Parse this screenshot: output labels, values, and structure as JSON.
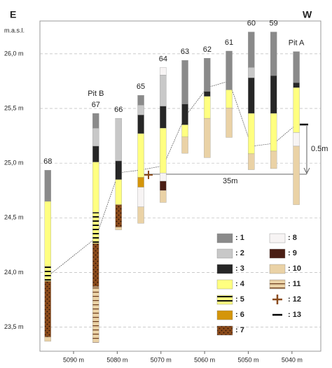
{
  "header": {
    "left": "E",
    "right": "W",
    "unit": "m.a.s.l."
  },
  "y_axis": {
    "lim": [
      23.28,
      26.3
    ],
    "ticks": [
      {
        "value": 26.0,
        "label": "26,0 m"
      },
      {
        "value": 25.5,
        "label": "25,5 m"
      },
      {
        "value": 25.0,
        "label": "25,0 m"
      },
      {
        "value": 24.5,
        "label": "24,5 m"
      },
      {
        "value": 24.0,
        "label": "24,0 m"
      },
      {
        "value": 23.5,
        "label": "23,5 m"
      }
    ]
  },
  "x_axis": {
    "lim": [
      5097.7,
      5033.4
    ],
    "ticks": [
      {
        "value": 5090,
        "label": "5090 m"
      },
      {
        "value": 5080,
        "label": "5080 m"
      },
      {
        "value": 5070,
        "label": "5070 m"
      },
      {
        "value": 5060,
        "label": "5060 m"
      },
      {
        "value": 5050,
        "label": "5050 m"
      },
      {
        "value": 5040,
        "label": "5040 m"
      }
    ]
  },
  "columns": [
    {
      "labels": [
        "68"
      ],
      "easting": 5095.9,
      "segments": [
        {
          "unit": 0,
          "top": 24.935,
          "bottom": 24.65
        },
        {
          "unit": 3,
          "top": 24.65,
          "bottom": 24.06
        },
        {
          "unit": 4,
          "top": 24.06,
          "bottom": 23.92
        },
        {
          "unit": 6,
          "top": 23.92,
          "bottom": 23.41
        },
        {
          "unit": 9,
          "top": 23.41,
          "bottom": 23.37
        }
      ]
    },
    {
      "labels": [
        "Pit B",
        "67"
      ],
      "easting": 5084.9,
      "segments": [
        {
          "unit": 0,
          "top": 25.455,
          "bottom": 25.32
        },
        {
          "unit": 1,
          "top": 25.32,
          "bottom": 25.155
        },
        {
          "unit": 2,
          "top": 25.155,
          "bottom": 25.01
        },
        {
          "unit": 3,
          "top": 25.01,
          "bottom": 24.55
        },
        {
          "unit": 4,
          "top": 24.55,
          "bottom": 24.265
        },
        {
          "unit": 6,
          "top": 24.265,
          "bottom": 23.87
        },
        {
          "unit": 10,
          "top": 23.87,
          "bottom": 23.36
        }
      ]
    },
    {
      "labels": [
        "66"
      ],
      "easting": 5079.7,
      "segments": [
        {
          "unit": 1,
          "top": 25.41,
          "bottom": 25.02
        },
        {
          "unit": 2,
          "top": 25.02,
          "bottom": 24.85
        },
        {
          "unit": 3,
          "top": 24.85,
          "bottom": 24.62
        },
        {
          "unit": 6,
          "top": 24.62,
          "bottom": 24.415
        },
        {
          "unit": 9,
          "top": 24.415,
          "bottom": 24.39
        }
      ]
    },
    {
      "labels": [
        "65"
      ],
      "easting": 5074.6,
      "segments": [
        {
          "unit": 0,
          "top": 25.62,
          "bottom": 25.53
        },
        {
          "unit": 1,
          "top": 25.53,
          "bottom": 25.44
        },
        {
          "unit": 2,
          "top": 25.44,
          "bottom": 25.27
        },
        {
          "unit": 3,
          "top": 25.27,
          "bottom": 24.87
        },
        {
          "unit": 5,
          "top": 24.87,
          "bottom": 24.78
        },
        {
          "unit": 7,
          "top": 24.78,
          "bottom": 24.6
        },
        {
          "unit": 9,
          "top": 24.6,
          "bottom": 24.45
        }
      ]
    },
    {
      "labels": [
        "64"
      ],
      "easting": 5069.5,
      "segments": [
        {
          "unit": 7,
          "top": 25.875,
          "bottom": 25.805
        },
        {
          "unit": 1,
          "top": 25.805,
          "bottom": 25.52
        },
        {
          "unit": 2,
          "top": 25.52,
          "bottom": 25.32
        },
        {
          "unit": 3,
          "top": 25.32,
          "bottom": 24.91
        },
        {
          "unit": 7,
          "top": 24.91,
          "bottom": 24.835
        },
        {
          "unit": 8,
          "top": 24.835,
          "bottom": 24.75
        },
        {
          "unit": 9,
          "top": 24.75,
          "bottom": 24.64
        }
      ]
    },
    {
      "labels": [
        "63"
      ],
      "easting": 5064.5,
      "segments": [
        {
          "unit": 0,
          "top": 25.94,
          "bottom": 25.54
        },
        {
          "unit": 2,
          "top": 25.54,
          "bottom": 25.35
        },
        {
          "unit": 3,
          "top": 25.35,
          "bottom": 25.24
        },
        {
          "unit": 9,
          "top": 25.24,
          "bottom": 25.09
        }
      ]
    },
    {
      "labels": [
        "62"
      ],
      "easting": 5059.4,
      "segments": [
        {
          "unit": 0,
          "top": 25.96,
          "bottom": 25.655
        },
        {
          "unit": 2,
          "top": 25.655,
          "bottom": 25.61
        },
        {
          "unit": 3,
          "top": 25.61,
          "bottom": 25.41
        },
        {
          "unit": 9,
          "top": 25.41,
          "bottom": 25.05
        }
      ]
    },
    {
      "labels": [
        "61"
      ],
      "easting": 5054.4,
      "segments": [
        {
          "unit": 0,
          "top": 26.025,
          "bottom": 25.67
        },
        {
          "unit": 3,
          "top": 25.67,
          "bottom": 25.505
        },
        {
          "unit": 9,
          "top": 25.505,
          "bottom": 25.235
        }
      ]
    },
    {
      "labels": [
        "60"
      ],
      "easting": 5049.3,
      "segments": [
        {
          "unit": 0,
          "top": 26.2,
          "bottom": 25.875
        },
        {
          "unit": 1,
          "top": 25.875,
          "bottom": 25.78
        },
        {
          "unit": 2,
          "top": 25.78,
          "bottom": 25.455
        },
        {
          "unit": 3,
          "top": 25.455,
          "bottom": 25.085
        },
        {
          "unit": 9,
          "top": 25.085,
          "bottom": 24.94
        }
      ]
    },
    {
      "labels": [
        "59"
      ],
      "easting": 5044.2,
      "segments": [
        {
          "unit": 0,
          "top": 26.2,
          "bottom": 25.8
        },
        {
          "unit": 2,
          "top": 25.8,
          "bottom": 25.455
        },
        {
          "unit": 3,
          "top": 25.455,
          "bottom": 25.11
        },
        {
          "unit": 9,
          "top": 25.11,
          "bottom": 24.95
        }
      ]
    },
    {
      "labels": [
        "Pit A"
      ],
      "easting": 5039.0,
      "segments": [
        {
          "unit": 0,
          "top": 26.02,
          "bottom": 25.735
        },
        {
          "unit": 2,
          "top": 25.735,
          "bottom": 25.69
        },
        {
          "unit": 3,
          "top": 25.69,
          "bottom": 25.28
        },
        {
          "unit": 7,
          "top": 25.28,
          "bottom": 25.155
        },
        {
          "unit": 9,
          "top": 25.155,
          "bottom": 24.62
        }
      ]
    }
  ],
  "legend": [
    {
      "label": ": 1",
      "fill": "#8a8a8a"
    },
    {
      "label": ": 2",
      "fill": "#c8c8c8"
    },
    {
      "label": ": 3",
      "fill": "#262626"
    },
    {
      "label": ": 4",
      "fill": "#ffff80"
    },
    {
      "label": ": 5",
      "fill": "url(#p5)"
    },
    {
      "label": ": 6",
      "fill": "#d4950a"
    },
    {
      "label": ": 7",
      "fill": "url(#p7)"
    },
    {
      "label": ": 8",
      "fill": "#f7f4f4"
    },
    {
      "label": ": 9",
      "fill": "#4a1e14"
    },
    {
      "label": ": 10",
      "fill": "#ead2a6"
    },
    {
      "label": ": 11",
      "fill": "url(#p11)"
    },
    {
      "label": ": 12",
      "symbol": "cross"
    },
    {
      "label": ": 13",
      "symbol": "dash"
    }
  ],
  "annotations": {
    "distance": "35m",
    "height": "0.5m"
  }
}
